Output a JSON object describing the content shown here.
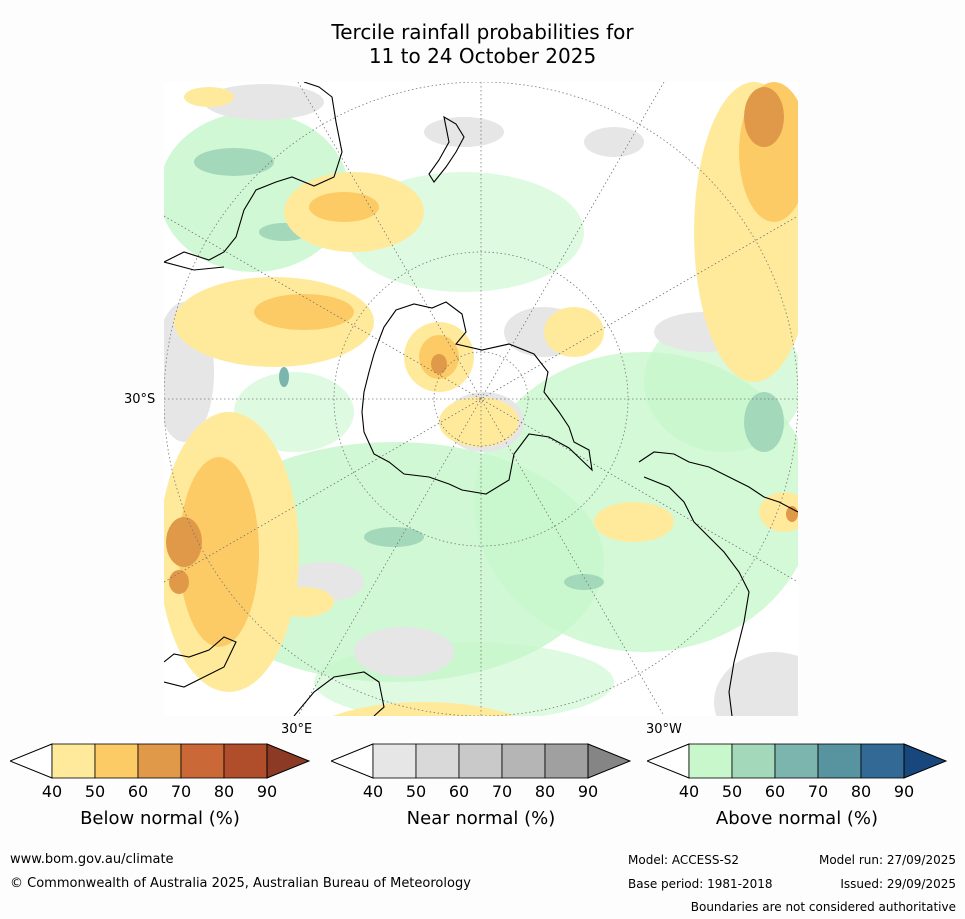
{
  "title": {
    "line1": "Tercile rainfall probabilities for",
    "line2": "11 to 24 October 2025"
  },
  "map": {
    "lat_label": "30°S",
    "lon_label_left": "30°E",
    "lon_label_right": "30°W"
  },
  "legends": [
    {
      "name": "Below normal (%)",
      "ticks": [
        "40",
        "50",
        "60",
        "70",
        "80",
        "90"
      ],
      "colors": [
        "#ffffff",
        "#ffea9c",
        "#fdcb66",
        "#e09948",
        "#cb6838",
        "#b04e2c",
        "#8c3a25"
      ]
    },
    {
      "name": "Near normal (%)",
      "ticks": [
        "40",
        "50",
        "60",
        "70",
        "80",
        "90"
      ],
      "colors": [
        "#ffffff",
        "#e6e6e6",
        "#d9d9d9",
        "#c9c9c9",
        "#b5b5b5",
        "#a0a0a0",
        "#858585"
      ]
    },
    {
      "name": "Above normal (%)",
      "ticks": [
        "40",
        "50",
        "60",
        "70",
        "80",
        "90"
      ],
      "colors": [
        "#ffffff",
        "#c8f7cc",
        "#a4d8bb",
        "#7bb5ad",
        "#5893a0",
        "#336995",
        "#17477d"
      ]
    }
  ],
  "footer": {
    "url": "www.bom.gov.au/climate",
    "copyright": "© Commonwealth of Australia 2025, Australian Bureau of Meteorology",
    "model": "Model: ACCESS-S2",
    "base_period": "Base period: 1981-2018",
    "model_run": "Model run: 27/09/2025",
    "issued": "Issued: 29/09/2025",
    "disclaimer": "Boundaries are not considered authoritative"
  }
}
